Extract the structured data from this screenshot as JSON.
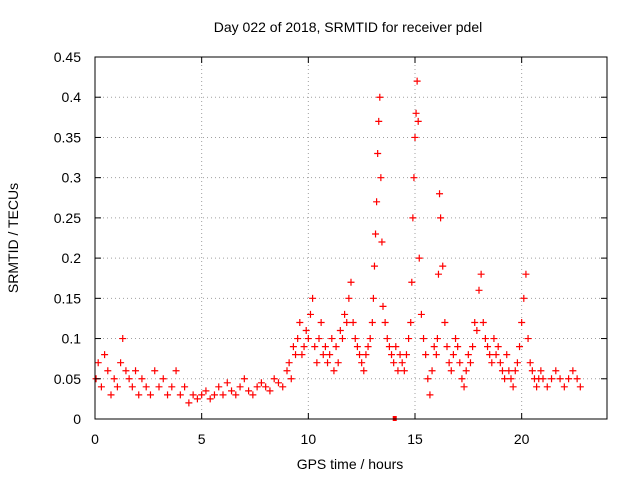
{
  "chart_data": {
    "type": "scatter",
    "title": "Day 022 of 2018, SRMTID for receiver pdel",
    "xlabel": "GPS time / hours",
    "ylabel": "SRMTID / TECUs",
    "xlim": [
      0,
      24
    ],
    "ylim": [
      0,
      0.45
    ],
    "grid": true,
    "marker": "+",
    "color": "#ff0000",
    "xticks": [
      0,
      5,
      10,
      15,
      20
    ],
    "xtick_labels": [
      "0",
      "5",
      "10",
      "15",
      "20"
    ],
    "yticks": [
      0,
      0.05,
      0.1,
      0.15,
      0.2,
      0.25,
      0.3,
      0.35,
      0.4,
      0.45
    ],
    "ytick_labels": [
      "0",
      "0.05",
      "0.1",
      "0.15",
      "0.2",
      "0.25",
      "0.3",
      "0.35",
      "0.4",
      "0.45"
    ],
    "series": [
      {
        "name": "SRMTID",
        "x": [
          0.05,
          0.15,
          0.3,
          0.45,
          0.6,
          0.75,
          0.9,
          1.05,
          1.2,
          1.3,
          1.45,
          1.6,
          1.75,
          1.9,
          2.05,
          2.2,
          2.4,
          2.6,
          2.8,
          3.0,
          3.2,
          3.4,
          3.6,
          3.8,
          4.0,
          4.2,
          4.4,
          4.6,
          4.8,
          5.0,
          5.2,
          5.4,
          5.6,
          5.8,
          6.0,
          6.2,
          6.4,
          6.6,
          6.8,
          7.0,
          7.2,
          7.4,
          7.6,
          7.8,
          8.0,
          8.2,
          8.4,
          8.6,
          8.8,
          9.0,
          9.1,
          9.2,
          9.3,
          9.4,
          9.5,
          9.6,
          9.7,
          9.8,
          9.9,
          10.0,
          10.1,
          10.2,
          10.3,
          10.4,
          10.5,
          10.6,
          10.7,
          10.8,
          10.9,
          11.0,
          11.1,
          11.2,
          11.3,
          11.4,
          11.5,
          11.6,
          11.7,
          11.8,
          11.9,
          12.0,
          12.1,
          12.2,
          12.3,
          12.4,
          12.5,
          12.6,
          12.7,
          12.8,
          12.9,
          13.0,
          13.05,
          13.1,
          13.15,
          13.2,
          13.25,
          13.3,
          13.35,
          13.4,
          13.45,
          13.5,
          13.6,
          13.7,
          13.8,
          13.9,
          14.0,
          14.1,
          14.2,
          14.3,
          14.4,
          14.5,
          14.6,
          14.7,
          14.8,
          14.85,
          14.9,
          14.95,
          15.0,
          15.05,
          15.1,
          15.15,
          15.2,
          15.3,
          15.4,
          15.5,
          15.6,
          15.7,
          15.8,
          15.9,
          16.0,
          16.05,
          16.1,
          16.15,
          16.2,
          16.3,
          16.4,
          16.5,
          16.6,
          16.7,
          16.8,
          16.9,
          17.0,
          17.1,
          17.2,
          17.3,
          17.4,
          17.5,
          17.6,
          17.7,
          17.8,
          17.9,
          18.0,
          18.1,
          18.2,
          18.3,
          18.4,
          18.5,
          18.6,
          18.7,
          18.8,
          18.9,
          19.0,
          19.1,
          19.2,
          19.3,
          19.4,
          19.5,
          19.6,
          19.7,
          19.8,
          19.9,
          20.0,
          20.1,
          20.2,
          20.3,
          20.4,
          20.5,
          20.6,
          20.7,
          20.8,
          20.9,
          21.0,
          21.2,
          21.4,
          21.6,
          21.8,
          22.0,
          22.2,
          22.4,
          22.6,
          22.75
        ],
        "y": [
          0.05,
          0.07,
          0.04,
          0.08,
          0.06,
          0.03,
          0.05,
          0.04,
          0.07,
          0.1,
          0.06,
          0.05,
          0.04,
          0.06,
          0.03,
          0.05,
          0.04,
          0.03,
          0.06,
          0.04,
          0.05,
          0.03,
          0.04,
          0.06,
          0.03,
          0.04,
          0.02,
          0.03,
          0.025,
          0.03,
          0.035,
          0.025,
          0.03,
          0.04,
          0.03,
          0.045,
          0.035,
          0.03,
          0.04,
          0.05,
          0.035,
          0.03,
          0.04,
          0.045,
          0.04,
          0.035,
          0.05,
          0.045,
          0.04,
          0.06,
          0.07,
          0.05,
          0.09,
          0.08,
          0.1,
          0.12,
          0.08,
          0.09,
          0.11,
          0.1,
          0.13,
          0.15,
          0.09,
          0.07,
          0.1,
          0.12,
          0.08,
          0.09,
          0.07,
          0.08,
          0.1,
          0.06,
          0.09,
          0.07,
          0.11,
          0.1,
          0.13,
          0.12,
          0.15,
          0.17,
          0.12,
          0.1,
          0.09,
          0.08,
          0.07,
          0.06,
          0.08,
          0.09,
          0.1,
          0.12,
          0.15,
          0.19,
          0.23,
          0.27,
          0.33,
          0.37,
          0.4,
          0.3,
          0.22,
          0.14,
          0.12,
          0.1,
          0.09,
          0.08,
          0.07,
          0.09,
          0.06,
          0.08,
          0.07,
          0.06,
          0.08,
          0.1,
          0.12,
          0.17,
          0.25,
          0.3,
          0.35,
          0.38,
          0.42,
          0.37,
          0.2,
          0.13,
          0.1,
          0.08,
          0.05,
          0.03,
          0.06,
          0.09,
          0.08,
          0.1,
          0.18,
          0.28,
          0.25,
          0.19,
          0.12,
          0.09,
          0.07,
          0.06,
          0.08,
          0.1,
          0.09,
          0.07,
          0.05,
          0.04,
          0.06,
          0.08,
          0.07,
          0.09,
          0.12,
          0.11,
          0.16,
          0.18,
          0.12,
          0.1,
          0.09,
          0.08,
          0.07,
          0.1,
          0.08,
          0.09,
          0.07,
          0.06,
          0.05,
          0.08,
          0.06,
          0.05,
          0.04,
          0.06,
          0.07,
          0.09,
          0.12,
          0.15,
          0.18,
          0.1,
          0.07,
          0.06,
          0.05,
          0.04,
          0.05,
          0.06,
          0.05,
          0.04,
          0.05,
          0.06,
          0.05,
          0.04,
          0.05,
          0.06,
          0.05,
          0.04
        ]
      }
    ],
    "bottom_marker": {
      "x": 14.05,
      "y": 0
    }
  }
}
